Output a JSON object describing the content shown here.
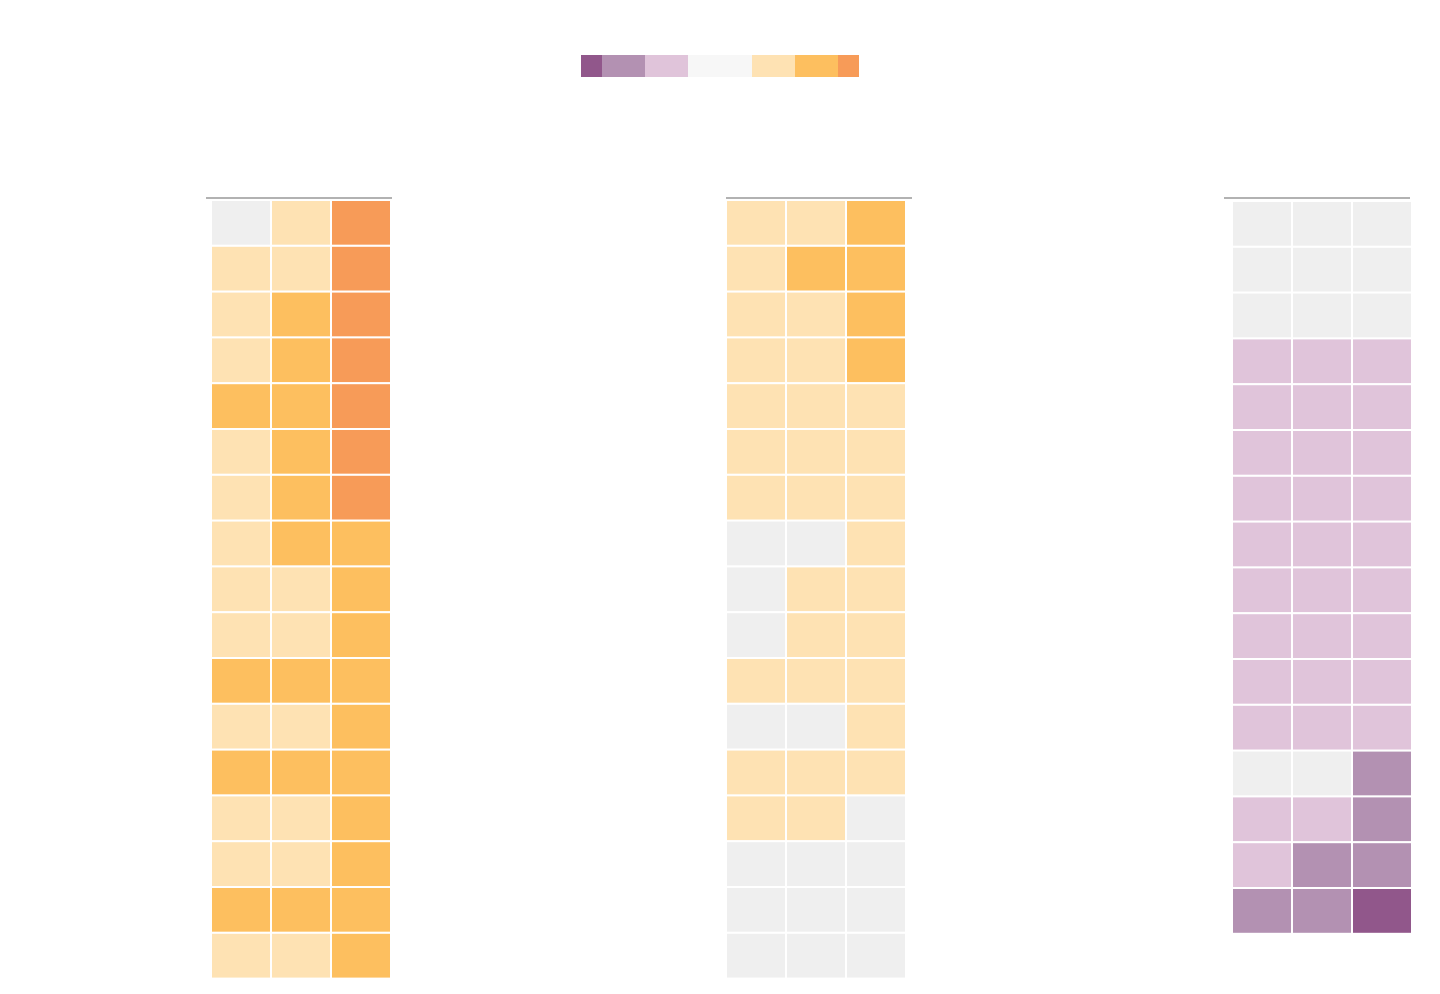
{
  "legend": {
    "colors": [
      "#91578b",
      "#b391b2",
      "#e0c4da",
      "#f7f7f7",
      "#fee2b3",
      "#fdbf5f",
      "#f79b58"
    ]
  },
  "panels": [
    {
      "cells": [
        [
          "#efefef",
          "#fee2b3",
          "#f79b58"
        ],
        [
          "#fee2b3",
          "#fee2b3",
          "#f79b58"
        ],
        [
          "#fee2b3",
          "#fdbf5f",
          "#f79b58"
        ],
        [
          "#fee2b3",
          "#fdbf5f",
          "#f79b58"
        ],
        [
          "#fdbf5f",
          "#fdbf5f",
          "#f79b58"
        ],
        [
          "#fee2b3",
          "#fdbf5f",
          "#f79b58"
        ],
        [
          "#fee2b3",
          "#fdbf5f",
          "#f79b58"
        ],
        [
          "#fee2b3",
          "#fdbf5f",
          "#fdbf5f"
        ],
        [
          "#fee2b3",
          "#fee2b3",
          "#fdbf5f"
        ],
        [
          "#fee2b3",
          "#fee2b3",
          "#fdbf5f"
        ],
        [
          "#fdbf5f",
          "#fdbf5f",
          "#fdbf5f"
        ],
        [
          "#fee2b3",
          "#fee2b3",
          "#fdbf5f"
        ],
        [
          "#fdbf5f",
          "#fdbf5f",
          "#fdbf5f"
        ],
        [
          "#fee2b3",
          "#fee2b3",
          "#fdbf5f"
        ],
        [
          "#fee2b3",
          "#fee2b3",
          "#fdbf5f"
        ],
        [
          "#fdbf5f",
          "#fdbf5f",
          "#fdbf5f"
        ],
        [
          "#fee2b3",
          "#fee2b3",
          "#fdbf5f"
        ]
      ]
    },
    {
      "cells": [
        [
          "#fee2b3",
          "#fee2b3",
          "#fdbf5f"
        ],
        [
          "#fee2b3",
          "#fdbf5f",
          "#fdbf5f"
        ],
        [
          "#fee2b3",
          "#fee2b3",
          "#fdbf5f"
        ],
        [
          "#fee2b3",
          "#fee2b3",
          "#fdbf5f"
        ],
        [
          "#fee2b3",
          "#fee2b3",
          "#fee2b3"
        ],
        [
          "#fee2b3",
          "#fee2b3",
          "#fee2b3"
        ],
        [
          "#fee2b3",
          "#fee2b3",
          "#fee2b3"
        ],
        [
          "#efefef",
          "#efefef",
          "#fee2b3"
        ],
        [
          "#efefef",
          "#fee2b3",
          "#fee2b3"
        ],
        [
          "#efefef",
          "#fee2b3",
          "#fee2b3"
        ],
        [
          "#fee2b3",
          "#fee2b3",
          "#fee2b3"
        ],
        [
          "#efefef",
          "#efefef",
          "#fee2b3"
        ],
        [
          "#fee2b3",
          "#fee2b3",
          "#fee2b3"
        ],
        [
          "#fee2b3",
          "#fee2b3",
          "#efefef"
        ],
        [
          "#efefef",
          "#efefef",
          "#efefef"
        ],
        [
          "#efefef",
          "#efefef",
          "#efefef"
        ],
        [
          "#efefef",
          "#efefef",
          "#efefef"
        ]
      ]
    },
    {
      "cells": [
        [
          "#efefef",
          "#efefef",
          "#efefef"
        ],
        [
          "#efefef",
          "#efefef",
          "#efefef"
        ],
        [
          "#efefef",
          "#efefef",
          "#efefef"
        ],
        [
          "#e0c4da",
          "#e0c4da",
          "#e0c4da"
        ],
        [
          "#e0c4da",
          "#e0c4da",
          "#e0c4da"
        ],
        [
          "#e0c4da",
          "#e0c4da",
          "#e0c4da"
        ],
        [
          "#e0c4da",
          "#e0c4da",
          "#e0c4da"
        ],
        [
          "#e0c4da",
          "#e0c4da",
          "#e0c4da"
        ],
        [
          "#e0c4da",
          "#e0c4da",
          "#e0c4da"
        ],
        [
          "#e0c4da",
          "#e0c4da",
          "#e0c4da"
        ],
        [
          "#e0c4da",
          "#e0c4da",
          "#e0c4da"
        ],
        [
          "#e0c4da",
          "#e0c4da",
          "#e0c4da"
        ],
        [
          "#efefef",
          "#efefef",
          "#b391b2"
        ],
        [
          "#e0c4da",
          "#e0c4da",
          "#b391b2"
        ],
        [
          "#e0c4da",
          "#b391b2",
          "#b391b2"
        ],
        [
          "#b391b2",
          "#b391b2",
          "#91578b"
        ]
      ]
    }
  ]
}
